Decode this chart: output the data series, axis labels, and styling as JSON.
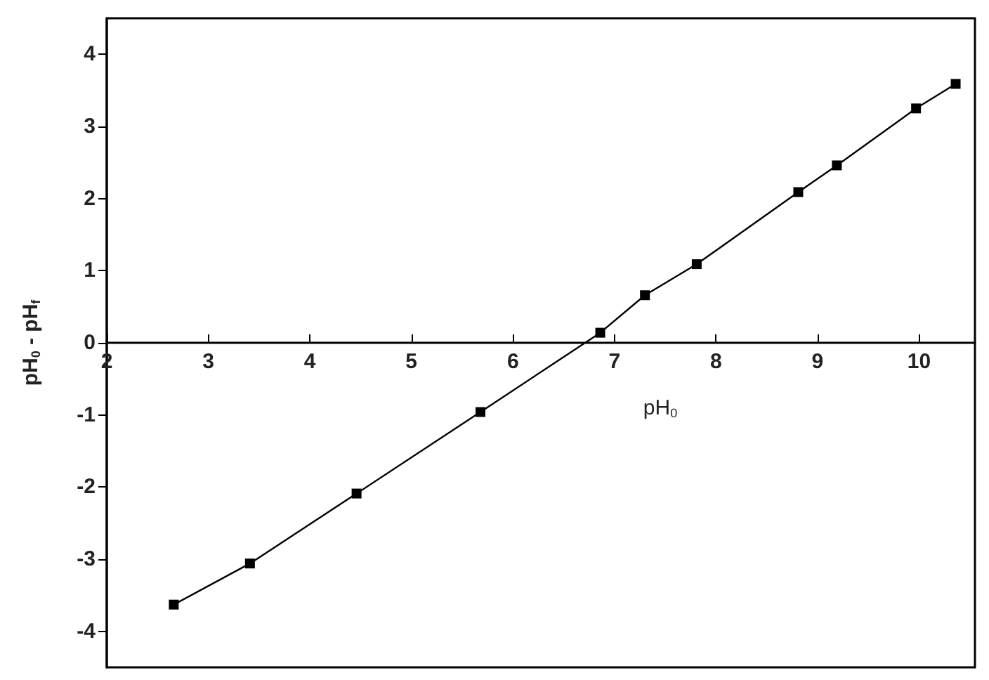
{
  "chart_data": {
    "type": "line",
    "xlabel": "pH$_{0}$",
    "ylabel": "pH$_{0}$ - pH$_{f}$",
    "x": [
      2.66,
      3.41,
      4.46,
      5.68,
      6.86,
      7.3,
      7.81,
      8.81,
      9.19,
      9.97,
      10.36
    ],
    "series": [
      {
        "color": "#000000",
        "values": [
          -3.63,
          -3.06,
          -2.09,
          -0.96,
          0.14,
          0.66,
          1.09,
          2.09,
          2.46,
          3.25,
          3.59
        ]
      }
    ],
    "xlim": [
      2,
      10.55
    ],
    "xticks": [
      2,
      3,
      4,
      5,
      6,
      7,
      8,
      9,
      10
    ],
    "ylim": [
      -4.5,
      4.5
    ],
    "yticks": [
      -4,
      -3,
      -2,
      -1,
      0,
      1,
      2,
      3,
      4
    ],
    "marker": "square",
    "line_style": "solid"
  }
}
